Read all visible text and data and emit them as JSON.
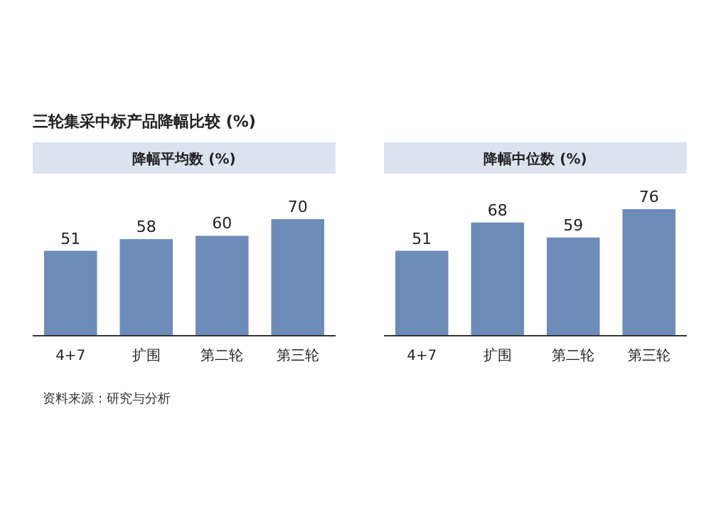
{
  "chart_data": [
    {
      "type": "bar",
      "title": "三轮集采中标产品降幅比较 (%)",
      "subtitle": "降幅平均数 (%)",
      "categories": [
        "4+7",
        "扩围",
        "第二轮",
        "第三轮"
      ],
      "values": [
        51,
        58,
        60,
        70
      ],
      "color": "#6e8cba",
      "data_labels": true,
      "annotations": [
        "资料来源：研究与分析"
      ]
    },
    {
      "type": "bar",
      "subtitle": "降幅中位数 (%)",
      "categories": [
        "4+7",
        "扩围",
        "第二轮",
        "第三轮"
      ],
      "values": [
        51,
        68,
        59,
        76
      ],
      "color": "#6e8cba",
      "data_labels": true
    }
  ]
}
